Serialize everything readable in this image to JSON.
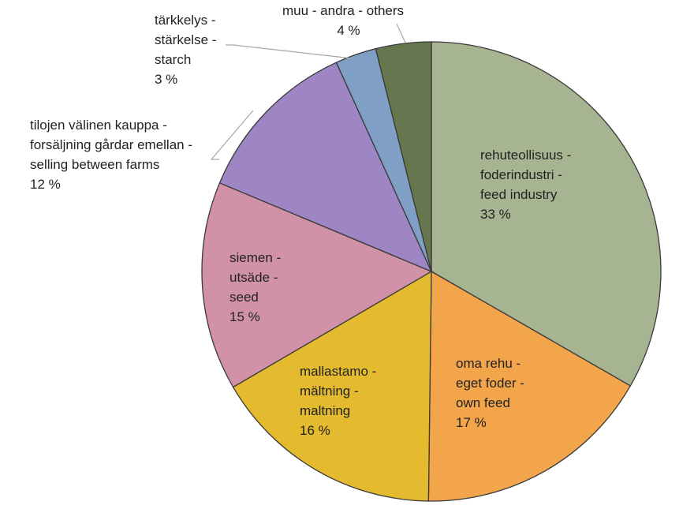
{
  "chart_data": {
    "type": "pie",
    "title": "",
    "start_angle_deg": 0,
    "direction": "clockwise",
    "slices": [
      {
        "label_lines": [
          "rehuteollisuus -",
          "foderindustri -",
          "feed industry"
        ],
        "value_text": "33 %",
        "value": 33.3,
        "color": "#a6b491",
        "label_position": "inside"
      },
      {
        "label_lines": [
          "oma rehu -",
          "eget foder -",
          "own feed"
        ],
        "value_text": "17 %",
        "value": 16.9,
        "color": "#f2a54a",
        "label_position": "inside"
      },
      {
        "label_lines": [
          "mallastamo -",
          "mältning -",
          "maltning"
        ],
        "value_text": "16 %",
        "value": 16.4,
        "color": "#e4bb2e",
        "label_position": "inside"
      },
      {
        "label_lines": [
          "siemen -",
          "utsäde -",
          "seed"
        ],
        "value_text": "15 %",
        "value": 14.7,
        "color": "#d191a6",
        "label_position": "inside"
      },
      {
        "label_lines": [
          "tilojen välinen kauppa -",
          "forsäljning gårdar emellan -",
          "selling between farms"
        ],
        "value_text": "12 %",
        "value": 11.9,
        "color": "#9e86c4",
        "label_position": "outside"
      },
      {
        "label_lines": [
          "tärkkelys -",
          "stärkelse -",
          "starch"
        ],
        "value_text": "3 %",
        "value": 2.9,
        "color": "#7f9fc4",
        "label_position": "outside"
      },
      {
        "label_lines": [
          "muu - andra - others"
        ],
        "value_text": "4 %",
        "value": 3.9,
        "color": "#66774f",
        "label_position": "outside"
      }
    ]
  }
}
